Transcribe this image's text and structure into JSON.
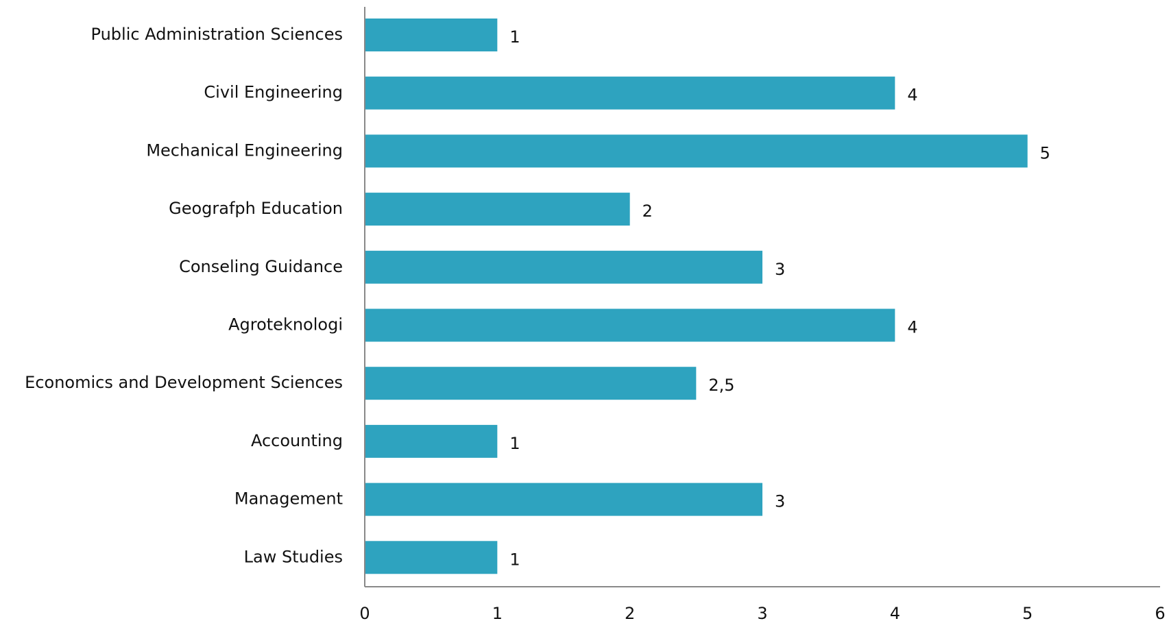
{
  "chart_data": {
    "type": "bar",
    "orientation": "horizontal",
    "title": "",
    "xlabel": "",
    "ylabel": "",
    "categories": [
      "Public Administration Sciences",
      "Civil Engineering",
      "Mechanical Engineering",
      "Geografph Education",
      "Conseling Guidance",
      "Agroteknologi",
      "Economics and Development Sciences",
      "Accounting",
      "Management",
      "Law Studies"
    ],
    "values": [
      1,
      4,
      5,
      2,
      3,
      4,
      2.5,
      1,
      3,
      1
    ],
    "value_labels": [
      "1",
      "4",
      "5",
      "2",
      "3",
      "4",
      "2,5",
      "1",
      "3",
      "1"
    ],
    "xlim": [
      0,
      6
    ],
    "xticks": [
      "0",
      "1",
      "2",
      "3",
      "4",
      "5",
      "6"
    ],
    "grid": false,
    "legend": "none",
    "bar_color": "#2ea3bf",
    "axis_color": "#888888"
  }
}
